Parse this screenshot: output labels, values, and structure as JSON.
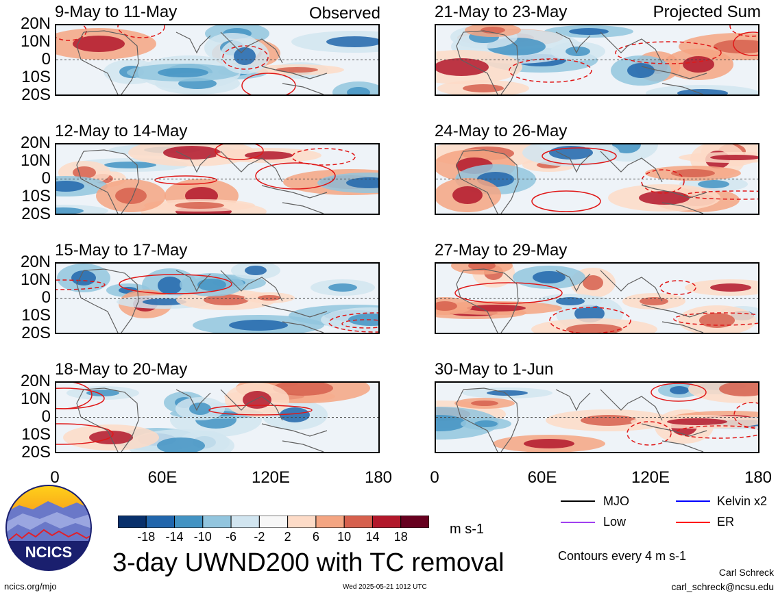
{
  "panels_left": [
    {
      "title": "9-May to 11-May",
      "tag": "Observed"
    },
    {
      "title": "12-May to 14-May",
      "tag": ""
    },
    {
      "title": "15-May to 17-May",
      "tag": ""
    },
    {
      "title": "18-May to 20-May",
      "tag": ""
    }
  ],
  "panels_right": [
    {
      "title": "21-May to 23-May",
      "tag": "Projected Sum"
    },
    {
      "title": "24-May to 26-May",
      "tag": ""
    },
    {
      "title": "27-May to 29-May",
      "tag": ""
    },
    {
      "title": "30-May to 1-Jun",
      "tag": ""
    }
  ],
  "lat_labels": [
    "20N",
    "10N",
    "0",
    "10S",
    "20S"
  ],
  "lon_labels": [
    "0",
    "60E",
    "120E",
    "180"
  ],
  "colorbar": {
    "colors": [
      "#08306b",
      "#2166ac",
      "#4393c3",
      "#92c5de",
      "#d1e5f0",
      "#f7f7f7",
      "#fddbc7",
      "#f4a582",
      "#d6604d",
      "#b2182b",
      "#67001f"
    ],
    "ticks": [
      "-18",
      "-14",
      "-10",
      "-6",
      "-2",
      "2",
      "6",
      "10",
      "14",
      "18"
    ],
    "units": "m s-1"
  },
  "legend": {
    "items": [
      {
        "label": "MJO",
        "color": "#000000"
      },
      {
        "label": "Kelvin x2",
        "color": "#0000ff"
      },
      {
        "label": "Low",
        "color": "#a040f0"
      },
      {
        "label": "ER",
        "color": "#ff0000"
      }
    ],
    "contours_note": "Contours every 4 m s-1"
  },
  "logo_text": "NCICS",
  "main_title": "3-day UWND200 with TC removal",
  "url": "ncics.org/mjo",
  "timestamp": "Wed 2025-05-21 1012 UTC",
  "author": "Carl Schreck",
  "email": "carl_schreck@ncsu.edu"
}
